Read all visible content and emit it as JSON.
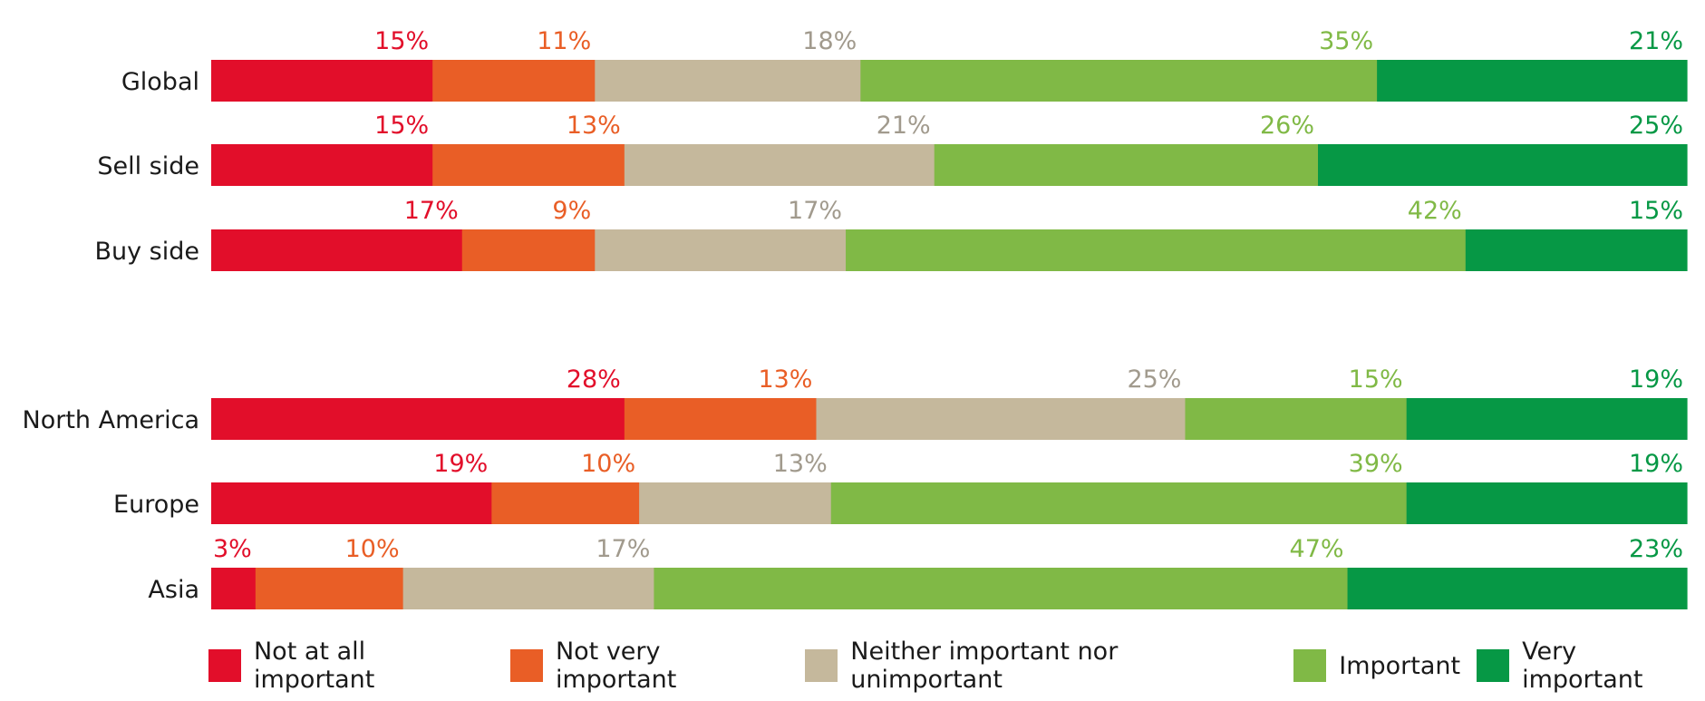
{
  "chart_data": {
    "type": "bar",
    "orientation": "horizontal",
    "stacked": "100%",
    "categories": [
      "Global",
      "Sell side",
      "Buy side",
      "North America",
      "Europe",
      "Asia"
    ],
    "groups": [
      [
        "Global",
        "Sell side",
        "Buy side"
      ],
      [
        "North America",
        "Europe",
        "Asia"
      ]
    ],
    "series": [
      {
        "name": "Not at all important",
        "color": "#e20e2a",
        "values": [
          15,
          15,
          17,
          28,
          19,
          3
        ],
        "labels": [
          "15%",
          "15%",
          "17%",
          "28%",
          "19%",
          "3%"
        ]
      },
      {
        "name": "Not very important",
        "color": "#e95e26",
        "values": [
          11,
          13,
          9,
          13,
          10,
          10
        ],
        "labels": [
          "11%",
          "13%",
          "9%",
          "13%",
          "10%",
          "10%"
        ]
      },
      {
        "name": "Neither important nor unimportant",
        "color": "#c5b89c",
        "values": [
          18,
          21,
          17,
          25,
          13,
          17
        ],
        "labels": [
          "18%",
          "21%",
          "17%",
          "25%",
          "13%",
          "17%"
        ]
      },
      {
        "name": "Important",
        "color": "#80b946",
        "values": [
          35,
          26,
          42,
          15,
          39,
          47
        ],
        "labels": [
          "35%",
          "26%",
          "42%",
          "15%",
          "39%",
          "47%"
        ]
      },
      {
        "name": "Very important",
        "color": "#069845",
        "values": [
          21,
          25,
          15,
          19,
          19,
          23
        ],
        "labels": [
          "21%",
          "25%",
          "15%",
          "19%",
          "19%",
          "23%"
        ]
      }
    ],
    "label_colors": [
      "#e20e2a",
      "#e95e26",
      "#a19a8d",
      "#80b946",
      "#069845"
    ],
    "xlim": [
      0,
      100
    ],
    "grid": false,
    "legend": "bottom"
  }
}
